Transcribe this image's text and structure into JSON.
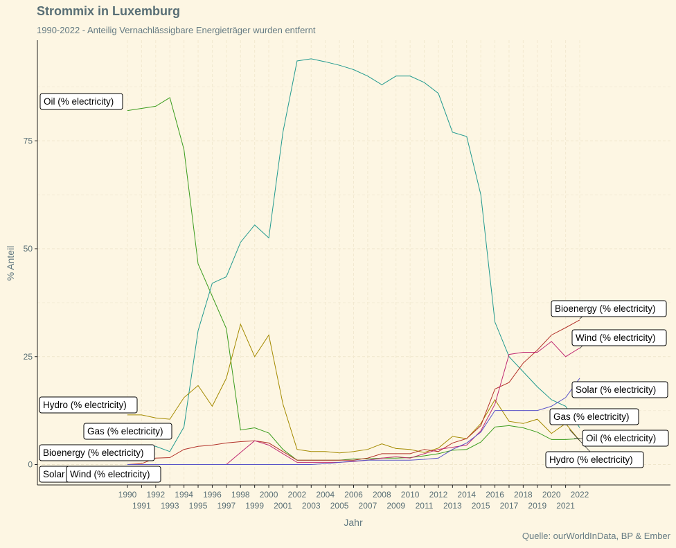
{
  "chart_data": {
    "type": "line",
    "title": "Strommix in Luxemburg",
    "subtitle": "1990-2022 - Anteilig Vernachlässigbare Energieträger wurden entfernt",
    "caption": "Quelle: ourWorldInData, BP & Ember",
    "xlabel": "Jahr",
    "ylabel": "% Anteil",
    "xlim": [
      1990,
      2022
    ],
    "ylim": [
      -4,
      98
    ],
    "yticks": [
      0,
      25,
      50,
      75
    ],
    "xticks": [
      1990,
      1991,
      1992,
      1993,
      1994,
      1995,
      1996,
      1997,
      1998,
      1999,
      2000,
      2001,
      2002,
      2003,
      2004,
      2005,
      2006,
      2007,
      2008,
      2009,
      2010,
      2011,
      2012,
      2013,
      2014,
      2015,
      2016,
      2017,
      2018,
      2019,
      2020,
      2021,
      2022
    ],
    "grid": true,
    "legend": "direct labels",
    "x": [
      1990,
      1991,
      1992,
      1993,
      1994,
      1995,
      1996,
      1997,
      1998,
      1999,
      2000,
      2001,
      2002,
      2003,
      2004,
      2005,
      2006,
      2007,
      2008,
      2009,
      2010,
      2011,
      2012,
      2013,
      2014,
      2015,
      2016,
      2017,
      2018,
      2019,
      2020,
      2021,
      2022
    ],
    "series": [
      {
        "name": "Oil (% electricity)",
        "color": "#3b9c1d",
        "values": [
          82,
          82.5,
          83,
          85,
          73,
          46.5,
          39,
          31.5,
          8,
          8.5,
          7.3,
          3.5,
          1,
          1,
          1,
          1,
          1.3,
          1.3,
          1.5,
          1.5,
          1.6,
          2,
          2.5,
          3.3,
          3.5,
          5.2,
          8.7,
          9,
          8.5,
          7.5,
          5.8,
          5.8,
          6
        ]
      },
      {
        "name": "Gas (% electricity)",
        "color": "#229a8f",
        "values": [
          4.3,
          4.3,
          4.2,
          3,
          8.7,
          31,
          42,
          43.5,
          51.5,
          55.5,
          52.5,
          77,
          93.5,
          94,
          93.3,
          92.5,
          91.5,
          90,
          88,
          90,
          90,
          88.5,
          86,
          77,
          76,
          62.5,
          33,
          25,
          21.5,
          18,
          15,
          13.5,
          8.5
        ]
      },
      {
        "name": "Hydro (% electricity)",
        "color": "#a48a00",
        "values": [
          11.5,
          11.5,
          10.8,
          10.5,
          15.5,
          18.3,
          13.5,
          20,
          32.5,
          25,
          30,
          14,
          3.5,
          3,
          3,
          2.7,
          3,
          3.5,
          4.8,
          3.7,
          3.5,
          2.8,
          3.8,
          6.5,
          6,
          9.5,
          15,
          10,
          9.5,
          10.5,
          7.2,
          9.5,
          5.5
        ]
      },
      {
        "name": "Bioenergy (% electricity)",
        "color": "#b3332b",
        "values": [
          0,
          0.2,
          1.5,
          1.6,
          3.5,
          4.2,
          4.5,
          5,
          5.3,
          5.5,
          5,
          3,
          1,
          1,
          1,
          1,
          1,
          1.5,
          2.5,
          2.5,
          2.5,
          3.5,
          3,
          5,
          6,
          9,
          17.5,
          19,
          23.5,
          26.5,
          30,
          31.7,
          33.5
        ]
      },
      {
        "name": "Wind (% electricity)",
        "color": "#c02a72",
        "values": [
          0,
          0,
          0,
          0,
          0,
          0,
          0,
          0,
          2.8,
          5.5,
          4.5,
          2.5,
          0.5,
          0.5,
          0.5,
          0.5,
          0.7,
          1,
          1.5,
          1.8,
          1.5,
          2.5,
          3.5,
          4,
          4.5,
          7.8,
          14,
          25.5,
          26,
          26,
          28.5,
          25,
          27
        ]
      },
      {
        "name": "Solar (% electricity)",
        "color": "#5a53c8",
        "values": [
          0,
          0,
          0,
          0,
          0,
          0,
          0,
          0,
          0,
          0,
          0,
          0,
          0,
          0,
          0.2,
          0.5,
          0.8,
          1,
          1,
          1,
          1,
          1.2,
          1.5,
          3.5,
          5,
          7.5,
          12.5,
          12.5,
          12.5,
          12.5,
          13.5,
          15.5,
          20
        ]
      }
    ],
    "labels": [
      {
        "text": "Oil (% electricity)",
        "side": "left"
      },
      {
        "text": "Hydro (% electricity)",
        "side": "left"
      },
      {
        "text": "Gas (% electricity)",
        "side": "left"
      },
      {
        "text": "Bioenergy (% electricity)",
        "side": "left"
      },
      {
        "text": "Solar",
        "side": "left"
      },
      {
        "text": "Wind (% electricity)",
        "side": "left"
      },
      {
        "text": "Bioenergy (% electricity)",
        "side": "right"
      },
      {
        "text": "Wind (% electricity)",
        "side": "right"
      },
      {
        "text": "Solar (% electricity)",
        "side": "right"
      },
      {
        "text": "Gas (% electricity)",
        "side": "right"
      },
      {
        "text": "Oil (% electricity)",
        "side": "right"
      },
      {
        "text": "Hydro (% electricity)",
        "side": "right"
      }
    ]
  }
}
